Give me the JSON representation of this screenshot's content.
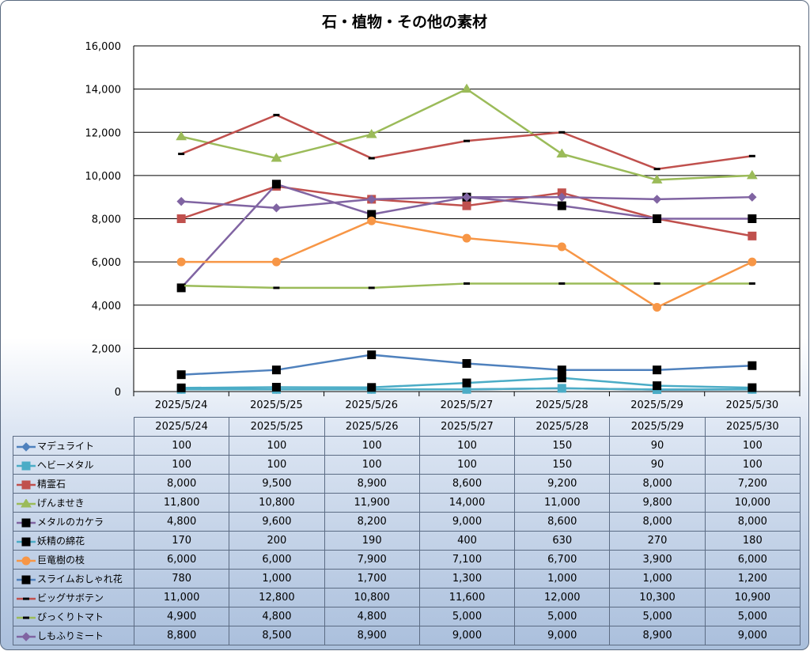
{
  "chart_data": {
    "type": "line",
    "title": "石・植物・その他の素材",
    "categories": [
      "2025/5/24",
      "2025/5/25",
      "2025/5/26",
      "2025/5/27",
      "2025/5/28",
      "2025/5/29",
      "2025/5/30"
    ],
    "ylim": [
      0,
      16000
    ],
    "yticks": [
      "0",
      "2,000",
      "4,000",
      "6,000",
      "8,000",
      "10,000",
      "12,000",
      "14,000",
      "16,000"
    ],
    "grid": true,
    "legend": "data table below chart",
    "series": [
      {
        "name": "マデュライト",
        "color": "#4f81bd",
        "marker": "diamond",
        "values": [
          100,
          100,
          100,
          100,
          150,
          90,
          100
        ],
        "display": [
          "100",
          "100",
          "100",
          "100",
          "150",
          "90",
          "100"
        ]
      },
      {
        "name": "ヘビーメタル",
        "color": "#4bacc6",
        "marker": "square",
        "values": [
          100,
          100,
          100,
          100,
          150,
          90,
          100
        ],
        "display": [
          "100",
          "100",
          "100",
          "100",
          "150",
          "90",
          "100"
        ]
      },
      {
        "name": "精霊石",
        "color": "#c0504d",
        "marker": "square",
        "values": [
          8000,
          9500,
          8900,
          8600,
          9200,
          8000,
          7200
        ],
        "display": [
          "8,000",
          "9,500",
          "8,900",
          "8,600",
          "9,200",
          "8,000",
          "7,200"
        ]
      },
      {
        "name": "げんませき",
        "color": "#9bbb59",
        "marker": "triangle",
        "values": [
          11800,
          10800,
          11900,
          14000,
          11000,
          9800,
          10000
        ],
        "display": [
          "11,800",
          "10,800",
          "11,900",
          "14,000",
          "11,000",
          "9,800",
          "10,000"
        ]
      },
      {
        "name": "メタルのカケラ",
        "color": "#8064a2",
        "marker": "blacksquare",
        "values": [
          4800,
          9600,
          8200,
          9000,
          8600,
          8000,
          8000
        ],
        "display": [
          "4,800",
          "9,600",
          "8,200",
          "9,000",
          "8,600",
          "8,000",
          "8,000"
        ]
      },
      {
        "name": "妖精の綿花",
        "color": "#4bacc6",
        "marker": "blacksquare",
        "values": [
          170,
          200,
          190,
          400,
          630,
          270,
          180
        ],
        "display": [
          "170",
          "200",
          "190",
          "400",
          "630",
          "270",
          "180"
        ]
      },
      {
        "name": "巨竜樹の枝",
        "color": "#f79646",
        "marker": "circle",
        "values": [
          6000,
          6000,
          7900,
          7100,
          6700,
          3900,
          6000
        ],
        "display": [
          "6,000",
          "6,000",
          "7,900",
          "7,100",
          "6,700",
          "3,900",
          "6,000"
        ]
      },
      {
        "name": "スライムおしゃれ花",
        "color": "#4f81bd",
        "marker": "blacksquare",
        "values": [
          780,
          1000,
          1700,
          1300,
          1000,
          1000,
          1200
        ],
        "display": [
          "780",
          "1,000",
          "1,700",
          "1,300",
          "1,000",
          "1,000",
          "1,200"
        ]
      },
      {
        "name": "ビッグサボテン",
        "color": "#c0504d",
        "marker": "dash",
        "values": [
          11000,
          12800,
          10800,
          11600,
          12000,
          10300,
          10900
        ],
        "display": [
          "11,000",
          "12,800",
          "10,800",
          "11,600",
          "12,000",
          "10,300",
          "10,900"
        ]
      },
      {
        "name": "びっくりトマト",
        "color": "#9bbb59",
        "marker": "dash",
        "values": [
          4900,
          4800,
          4800,
          5000,
          5000,
          5000,
          5000
        ],
        "display": [
          "4,900",
          "4,800",
          "4,800",
          "5,000",
          "5,000",
          "5,000",
          "5,000"
        ]
      },
      {
        "name": "しもふりミート",
        "color": "#8064a2",
        "marker": "diamond",
        "values": [
          8800,
          8500,
          8900,
          9000,
          9000,
          8900,
          9000
        ],
        "display": [
          "8,800",
          "8,500",
          "8,900",
          "9,000",
          "9,000",
          "8,900",
          "9,000"
        ]
      }
    ]
  }
}
